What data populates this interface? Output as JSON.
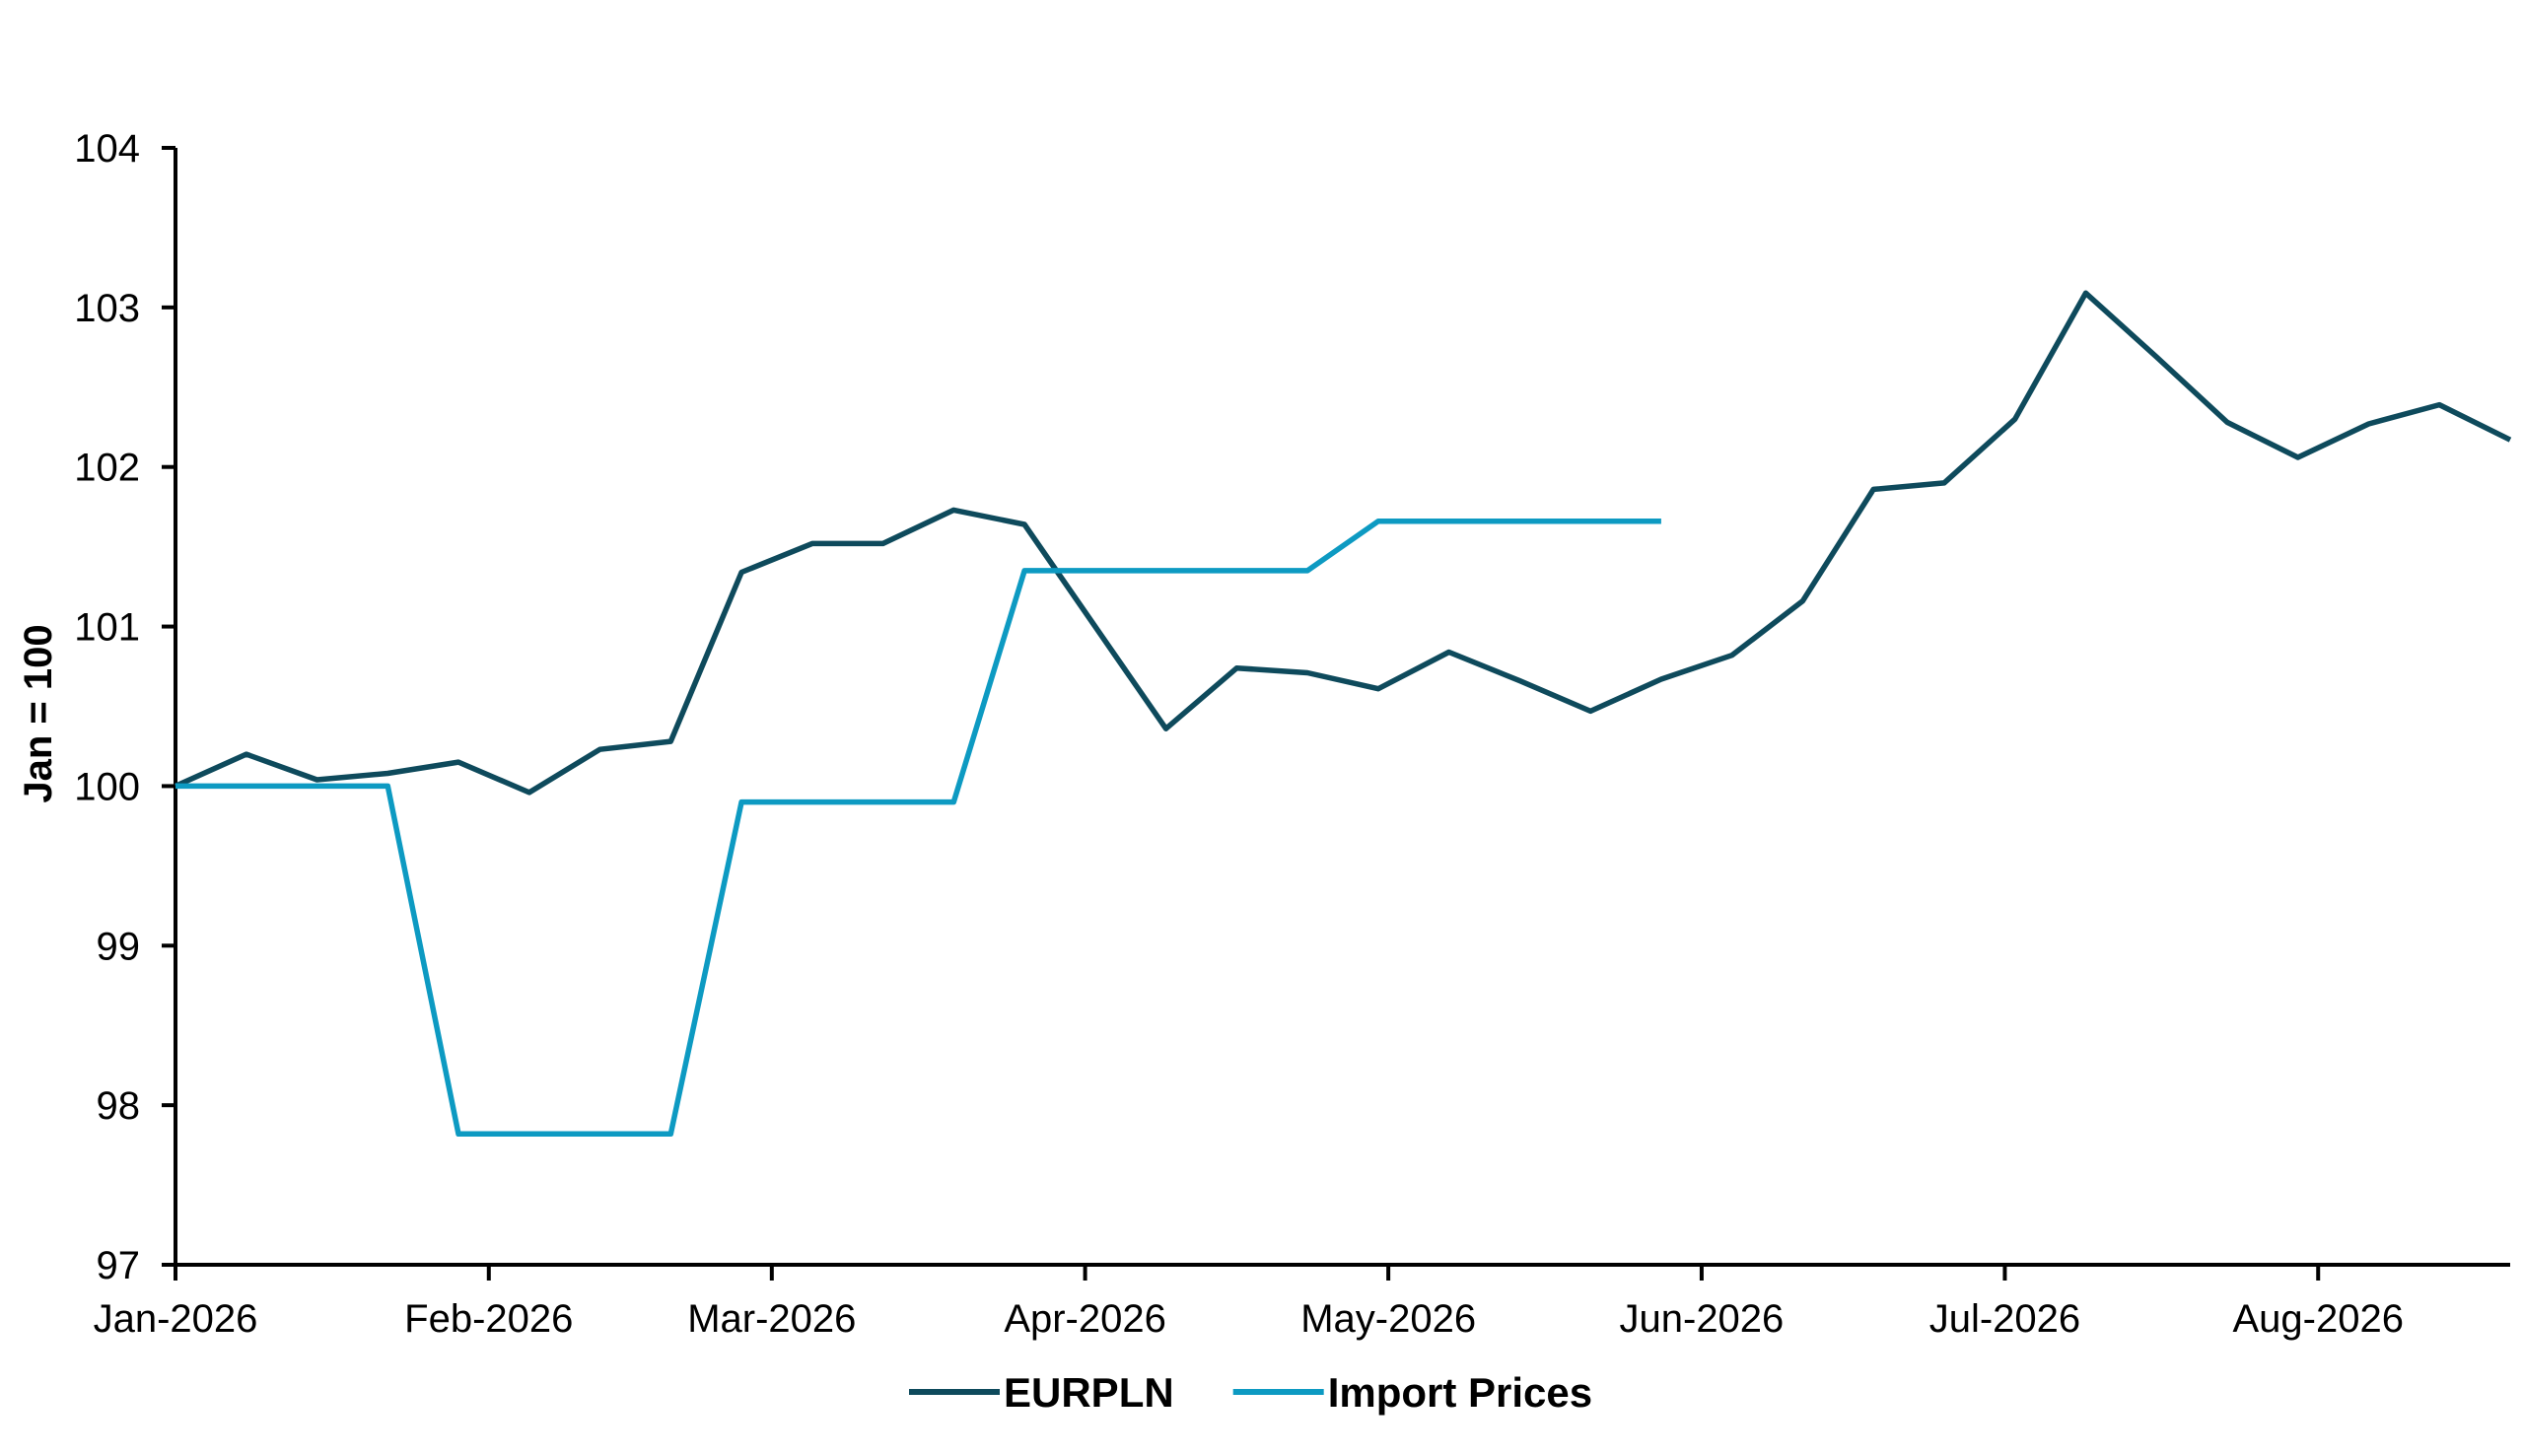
{
  "chart_data": {
    "type": "line",
    "ylabel": "Jan = 100",
    "ylim": [
      97,
      104
    ],
    "yticks": [
      97,
      98,
      99,
      100,
      101,
      102,
      103,
      104
    ],
    "xlim": [
      "2026-01-01",
      "2026-08-20"
    ],
    "xticks": [
      {
        "date": "2026-01-01",
        "label": "Jan-2026"
      },
      {
        "date": "2026-02-01",
        "label": "Feb-2026"
      },
      {
        "date": "2026-03-01",
        "label": "Mar-2026"
      },
      {
        "date": "2026-04-01",
        "label": "Apr-2026"
      },
      {
        "date": "2026-05-01",
        "label": "May-2026"
      },
      {
        "date": "2026-06-01",
        "label": "Jun-2026"
      },
      {
        "date": "2026-07-01",
        "label": "Jul-2026"
      },
      {
        "date": "2026-08-01",
        "label": "Aug-2026"
      }
    ],
    "legend_position": "bottom-center",
    "grid": false,
    "series": [
      {
        "name": "EURPLN",
        "color": "#0e4a5c",
        "points": [
          [
            "2026-01-01",
            100.0
          ],
          [
            "2026-01-08",
            100.2
          ],
          [
            "2026-01-15",
            100.04
          ],
          [
            "2026-01-22",
            100.08
          ],
          [
            "2026-01-29",
            100.15
          ],
          [
            "2026-02-05",
            99.96
          ],
          [
            "2026-02-12",
            100.23
          ],
          [
            "2026-02-19",
            100.28
          ],
          [
            "2026-02-26",
            101.34
          ],
          [
            "2026-03-05",
            101.52
          ],
          [
            "2026-03-12",
            101.52
          ],
          [
            "2026-03-19",
            101.73
          ],
          [
            "2026-03-26",
            101.64
          ],
          [
            "2026-04-02",
            101.0
          ],
          [
            "2026-04-09",
            100.36
          ],
          [
            "2026-04-16",
            100.74
          ],
          [
            "2026-04-23",
            100.71
          ],
          [
            "2026-04-30",
            100.61
          ],
          [
            "2026-05-07",
            100.84
          ],
          [
            "2026-05-14",
            100.66
          ],
          [
            "2026-05-21",
            100.47
          ],
          [
            "2026-05-28",
            100.67
          ],
          [
            "2026-06-04",
            100.82
          ],
          [
            "2026-06-11",
            101.16
          ],
          [
            "2026-06-18",
            101.86
          ],
          [
            "2026-06-25",
            101.9
          ],
          [
            "2026-07-02",
            102.3
          ],
          [
            "2026-07-09",
            103.09
          ],
          [
            "2026-07-16",
            102.69
          ],
          [
            "2026-07-23",
            102.28
          ],
          [
            "2026-07-30",
            102.06
          ],
          [
            "2026-08-06",
            102.27
          ],
          [
            "2026-08-13",
            102.39
          ],
          [
            "2026-08-20",
            102.17
          ]
        ]
      },
      {
        "name": "Import Prices",
        "color": "#0d9ac2",
        "points": [
          [
            "2026-01-01",
            100.0
          ],
          [
            "2026-01-22",
            100.0
          ],
          [
            "2026-01-29",
            97.82
          ],
          [
            "2026-02-19",
            97.82
          ],
          [
            "2026-02-26",
            99.9
          ],
          [
            "2026-03-19",
            99.9
          ],
          [
            "2026-03-26",
            101.35
          ],
          [
            "2026-04-23",
            101.35
          ],
          [
            "2026-04-30",
            101.66
          ],
          [
            "2026-05-28",
            101.66
          ]
        ]
      }
    ]
  }
}
